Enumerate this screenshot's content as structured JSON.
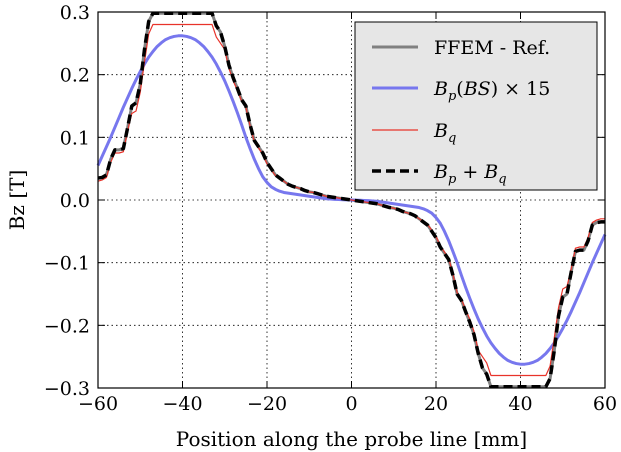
{
  "chart_data": {
    "type": "line",
    "xlabel": "Position along the probe line [mm]",
    "ylabel": "Bz [T]",
    "xlim": [
      -60,
      60
    ],
    "ylim": [
      -0.3,
      0.3
    ],
    "xticks": [
      -60,
      -40,
      -20,
      0,
      20,
      40,
      60
    ],
    "xtick_labels": [
      "−60",
      "−40",
      "−20",
      "0",
      "20",
      "40",
      "60"
    ],
    "yticks": [
      0.3,
      0.2,
      0.1,
      0.0,
      -0.1,
      -0.2,
      -0.3
    ],
    "ytick_labels": [
      "0.3",
      "0.2",
      "0.1",
      "0.0",
      "−0.1",
      "−0.2",
      "−0.3"
    ],
    "grid": true,
    "legend_position": "top-right",
    "series": [
      {
        "name": "FFEM - Ref.",
        "color": "#808080",
        "style": "solid",
        "x": [
          -60,
          -59,
          -58,
          -57,
          -56,
          -55,
          -54,
          -53,
          -52,
          -51,
          -50,
          -49,
          -48,
          -47,
          -46,
          -45,
          -44,
          -43,
          -42,
          -41,
          -40,
          -39,
          -38,
          -37,
          -36,
          -35,
          -34,
          -33,
          -32,
          -31,
          -30,
          -29,
          -28,
          -27,
          -26,
          -25,
          -24,
          -23,
          -22,
          -21,
          -20,
          -19,
          -18,
          -17,
          -16,
          -15,
          -14,
          -13,
          -12,
          -11,
          -10,
          -9,
          -8,
          -7,
          -6,
          -5,
          -4,
          -3,
          -2,
          -1,
          0,
          1,
          2,
          3,
          4,
          5,
          6,
          7,
          8,
          9,
          10,
          11,
          12,
          13,
          14,
          15,
          16,
          17,
          18,
          19,
          20,
          21,
          22,
          23,
          24,
          25,
          26,
          27,
          28,
          29,
          30,
          31,
          32,
          33,
          34,
          35,
          36,
          37,
          38,
          39,
          40,
          41,
          42,
          43,
          44,
          45,
          46,
          47,
          48,
          49,
          50,
          51,
          52,
          53,
          54,
          55,
          56,
          57,
          58,
          59,
          60
        ],
        "y": [
          0.035,
          0.036,
          0.04,
          0.065,
          0.08,
          0.08,
          0.082,
          0.115,
          0.15,
          0.155,
          0.185,
          0.24,
          0.285,
          0.298,
          0.298,
          0.298,
          0.298,
          0.298,
          0.298,
          0.298,
          0.298,
          0.298,
          0.298,
          0.298,
          0.298,
          0.298,
          0.298,
          0.298,
          0.278,
          0.268,
          0.245,
          0.215,
          0.195,
          0.178,
          0.16,
          0.15,
          0.12,
          0.095,
          0.085,
          0.075,
          0.06,
          0.05,
          0.04,
          0.035,
          0.03,
          0.025,
          0.022,
          0.02,
          0.018,
          0.015,
          0.013,
          0.012,
          0.01,
          0.008,
          0.006,
          0.005,
          0.004,
          0.003,
          0.002,
          0.001,
          0.0,
          -0.001,
          -0.002,
          -0.003,
          -0.004,
          -0.005,
          -0.006,
          -0.008,
          -0.01,
          -0.012,
          -0.013,
          -0.015,
          -0.018,
          -0.02,
          -0.022,
          -0.025,
          -0.03,
          -0.035,
          -0.04,
          -0.05,
          -0.06,
          -0.075,
          -0.085,
          -0.095,
          -0.12,
          -0.15,
          -0.16,
          -0.178,
          -0.195,
          -0.215,
          -0.245,
          -0.268,
          -0.278,
          -0.298,
          -0.298,
          -0.298,
          -0.298,
          -0.298,
          -0.298,
          -0.298,
          -0.298,
          -0.298,
          -0.298,
          -0.298,
          -0.298,
          -0.298,
          -0.298,
          -0.285,
          -0.24,
          -0.185,
          -0.155,
          -0.15,
          -0.115,
          -0.082,
          -0.08,
          -0.08,
          -0.065,
          -0.04,
          -0.036,
          -0.035,
          -0.035
        ]
      },
      {
        "name": "B_p(BS) × 15",
        "color": "#7777ee",
        "style": "solid",
        "x": [
          -60,
          -59,
          -58,
          -57,
          -56,
          -55,
          -54,
          -53,
          -52,
          -51,
          -50,
          -49,
          -48,
          -47,
          -46,
          -45,
          -44,
          -43,
          -42,
          -41,
          -40,
          -39,
          -38,
          -37,
          -36,
          -35,
          -34,
          -33,
          -32,
          -31,
          -30,
          -29,
          -28,
          -27,
          -26,
          -25,
          -24,
          -23,
          -22,
          -21,
          -20,
          -19,
          -18,
          -17,
          -16,
          -15,
          -14,
          -13,
          -12,
          -11,
          -10,
          -9,
          -8,
          -7,
          -6,
          -5,
          -4,
          -3,
          -2,
          -1,
          0,
          1,
          2,
          3,
          4,
          5,
          6,
          7,
          8,
          9,
          10,
          11,
          12,
          13,
          14,
          15,
          16,
          17,
          18,
          19,
          20,
          21,
          22,
          23,
          24,
          25,
          26,
          27,
          28,
          29,
          30,
          31,
          32,
          33,
          34,
          35,
          36,
          37,
          38,
          39,
          40,
          41,
          42,
          43,
          44,
          45,
          46,
          47,
          48,
          49,
          50,
          51,
          52,
          53,
          54,
          55,
          56,
          57,
          58,
          59,
          60
        ],
        "y": [
          0.055,
          0.07,
          0.085,
          0.1,
          0.116,
          0.132,
          0.148,
          0.163,
          0.178,
          0.192,
          0.205,
          0.217,
          0.228,
          0.237,
          0.245,
          0.251,
          0.256,
          0.259,
          0.261,
          0.262,
          0.262,
          0.261,
          0.259,
          0.256,
          0.251,
          0.245,
          0.237,
          0.228,
          0.217,
          0.204,
          0.19,
          0.174,
          0.157,
          0.139,
          0.12,
          0.1,
          0.082,
          0.065,
          0.05,
          0.037,
          0.028,
          0.021,
          0.017,
          0.014,
          0.012,
          0.011,
          0.01,
          0.009,
          0.008,
          0.007,
          0.006,
          0.005,
          0.004,
          0.003,
          0.002,
          0.0015,
          0.001,
          0.0007,
          0.0004,
          0.0002,
          0.0,
          -0.0002,
          -0.0004,
          -0.0007,
          -0.001,
          -0.0015,
          -0.002,
          -0.003,
          -0.004,
          -0.005,
          -0.006,
          -0.007,
          -0.008,
          -0.009,
          -0.01,
          -0.011,
          -0.012,
          -0.014,
          -0.017,
          -0.021,
          -0.028,
          -0.037,
          -0.05,
          -0.065,
          -0.082,
          -0.1,
          -0.12,
          -0.139,
          -0.157,
          -0.174,
          -0.19,
          -0.204,
          -0.217,
          -0.228,
          -0.237,
          -0.245,
          -0.251,
          -0.256,
          -0.259,
          -0.261,
          -0.262,
          -0.262,
          -0.261,
          -0.259,
          -0.256,
          -0.251,
          -0.245,
          -0.237,
          -0.228,
          -0.217,
          -0.205,
          -0.192,
          -0.178,
          -0.163,
          -0.148,
          -0.132,
          -0.116,
          -0.1,
          -0.085,
          -0.07,
          -0.055
        ]
      },
      {
        "name": "B_q",
        "color": "#e8332a",
        "style": "solid",
        "x": [
          -60,
          -59,
          -58,
          -57,
          -56,
          -55,
          -54,
          -53,
          -52,
          -51,
          -50,
          -49,
          -48,
          -47,
          -46,
          -45,
          -44,
          -43,
          -42,
          -41,
          -40,
          -39,
          -38,
          -37,
          -36,
          -35,
          -34,
          -33,
          -32,
          -31,
          -30,
          -29,
          -28,
          -27,
          -26,
          -25,
          -24,
          -23,
          -22,
          -21,
          -20,
          -19,
          -18,
          -17,
          -16,
          -15,
          -14,
          -13,
          -12,
          -11,
          -10,
          -9,
          -8,
          -7,
          -6,
          -5,
          -4,
          -3,
          -2,
          -1,
          0,
          1,
          2,
          3,
          4,
          5,
          6,
          7,
          8,
          9,
          10,
          11,
          12,
          13,
          14,
          15,
          16,
          17,
          18,
          19,
          20,
          21,
          22,
          23,
          24,
          25,
          26,
          27,
          28,
          29,
          30,
          31,
          32,
          33,
          34,
          35,
          36,
          37,
          38,
          39,
          40,
          41,
          42,
          43,
          44,
          45,
          46,
          47,
          48,
          49,
          50,
          51,
          52,
          53,
          54,
          55,
          56,
          57,
          58,
          59,
          60
        ],
        "y": [
          0.03,
          0.032,
          0.036,
          0.06,
          0.075,
          0.075,
          0.077,
          0.11,
          0.138,
          0.142,
          0.172,
          0.22,
          0.265,
          0.28,
          0.28,
          0.28,
          0.28,
          0.28,
          0.28,
          0.28,
          0.28,
          0.28,
          0.28,
          0.28,
          0.28,
          0.28,
          0.28,
          0.28,
          0.26,
          0.25,
          0.24,
          0.21,
          0.19,
          0.175,
          0.158,
          0.148,
          0.118,
          0.093,
          0.083,
          0.073,
          0.058,
          0.048,
          0.039,
          0.034,
          0.03,
          0.025,
          0.022,
          0.02,
          0.018,
          0.015,
          0.013,
          0.012,
          0.01,
          0.008,
          0.006,
          0.005,
          0.004,
          0.003,
          0.002,
          0.001,
          0.0,
          -0.001,
          -0.002,
          -0.003,
          -0.004,
          -0.005,
          -0.006,
          -0.008,
          -0.01,
          -0.012,
          -0.013,
          -0.015,
          -0.018,
          -0.02,
          -0.022,
          -0.025,
          -0.03,
          -0.034,
          -0.039,
          -0.048,
          -0.058,
          -0.073,
          -0.083,
          -0.093,
          -0.118,
          -0.148,
          -0.158,
          -0.175,
          -0.19,
          -0.21,
          -0.24,
          -0.25,
          -0.26,
          -0.28,
          -0.28,
          -0.28,
          -0.28,
          -0.28,
          -0.28,
          -0.28,
          -0.28,
          -0.28,
          -0.28,
          -0.28,
          -0.28,
          -0.28,
          -0.28,
          -0.265,
          -0.22,
          -0.172,
          -0.142,
          -0.138,
          -0.11,
          -0.077,
          -0.075,
          -0.075,
          -0.06,
          -0.036,
          -0.032,
          -0.03,
          -0.03
        ]
      },
      {
        "name": "B_p + B_q",
        "color": "#000000",
        "style": "dashed",
        "x": [
          -60,
          -59,
          -58,
          -57,
          -56,
          -55,
          -54,
          -53,
          -52,
          -51,
          -50,
          -49,
          -48,
          -47,
          -46,
          -45,
          -44,
          -43,
          -42,
          -41,
          -40,
          -39,
          -38,
          -37,
          -36,
          -35,
          -34,
          -33,
          -32,
          -31,
          -30,
          -29,
          -28,
          -27,
          -26,
          -25,
          -24,
          -23,
          -22,
          -21,
          -20,
          -19,
          -18,
          -17,
          -16,
          -15,
          -14,
          -13,
          -12,
          -11,
          -10,
          -9,
          -8,
          -7,
          -6,
          -5,
          -4,
          -3,
          -2,
          -1,
          0,
          1,
          2,
          3,
          4,
          5,
          6,
          7,
          8,
          9,
          10,
          11,
          12,
          13,
          14,
          15,
          16,
          17,
          18,
          19,
          20,
          21,
          22,
          23,
          24,
          25,
          26,
          27,
          28,
          29,
          30,
          31,
          32,
          33,
          34,
          35,
          36,
          37,
          38,
          39,
          40,
          41,
          42,
          43,
          44,
          45,
          46,
          47,
          48,
          49,
          50,
          51,
          52,
          53,
          54,
          55,
          56,
          57,
          58,
          59,
          60
        ],
        "y": [
          0.035,
          0.036,
          0.04,
          0.065,
          0.08,
          0.08,
          0.082,
          0.115,
          0.15,
          0.155,
          0.185,
          0.24,
          0.285,
          0.298,
          0.298,
          0.298,
          0.298,
          0.298,
          0.298,
          0.298,
          0.298,
          0.298,
          0.298,
          0.298,
          0.298,
          0.298,
          0.298,
          0.298,
          0.278,
          0.268,
          0.245,
          0.215,
          0.195,
          0.178,
          0.16,
          0.15,
          0.12,
          0.095,
          0.085,
          0.075,
          0.06,
          0.05,
          0.04,
          0.035,
          0.03,
          0.025,
          0.022,
          0.02,
          0.018,
          0.015,
          0.013,
          0.012,
          0.01,
          0.008,
          0.006,
          0.005,
          0.004,
          0.003,
          0.002,
          0.001,
          0.0,
          -0.001,
          -0.002,
          -0.003,
          -0.004,
          -0.005,
          -0.006,
          -0.008,
          -0.01,
          -0.012,
          -0.013,
          -0.015,
          -0.018,
          -0.02,
          -0.022,
          -0.025,
          -0.03,
          -0.035,
          -0.04,
          -0.05,
          -0.06,
          -0.075,
          -0.085,
          -0.095,
          -0.12,
          -0.15,
          -0.16,
          -0.178,
          -0.195,
          -0.215,
          -0.245,
          -0.268,
          -0.278,
          -0.298,
          -0.298,
          -0.298,
          -0.298,
          -0.298,
          -0.298,
          -0.298,
          -0.298,
          -0.298,
          -0.298,
          -0.298,
          -0.298,
          -0.298,
          -0.298,
          -0.285,
          -0.24,
          -0.185,
          -0.155,
          -0.15,
          -0.115,
          -0.082,
          -0.08,
          -0.08,
          -0.065,
          -0.04,
          -0.036,
          -0.035,
          -0.035
        ]
      }
    ],
    "legend": {
      "entries": [
        {
          "text": "FFEM - Ref.",
          "color": "#808080",
          "style": "solid"
        },
        {
          "text": "B_p(BS) × 15",
          "color": "#7777ee",
          "style": "solid"
        },
        {
          "text": "B_q",
          "color": "#e8332a",
          "style": "solid"
        },
        {
          "text": "B_p + B_q",
          "color": "#000000",
          "style": "dashed"
        }
      ],
      "background": "#e6e6e6"
    }
  }
}
